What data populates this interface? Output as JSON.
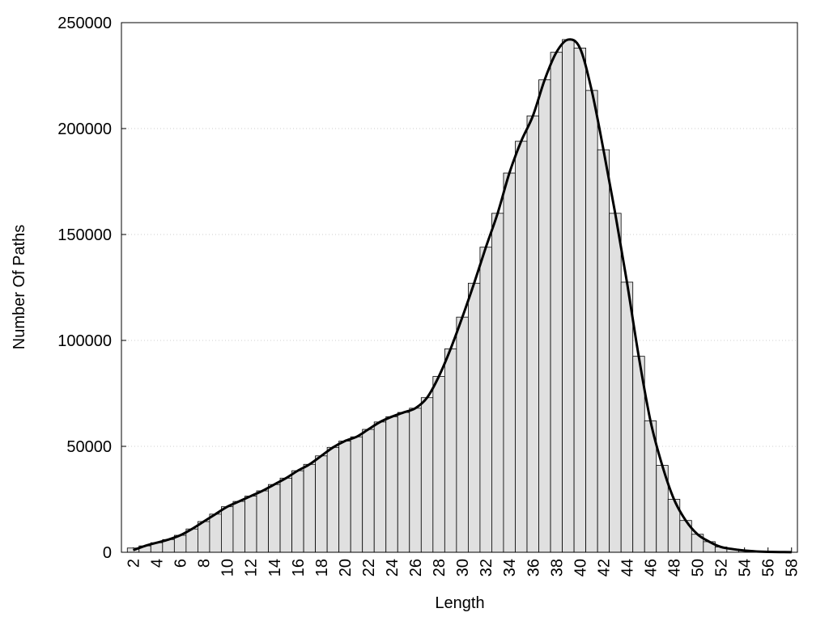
{
  "chart_data": {
    "type": "bar",
    "x_label": "Length",
    "y_label": "Number Of Paths",
    "x": [
      2,
      3,
      4,
      5,
      6,
      7,
      8,
      9,
      10,
      11,
      12,
      13,
      14,
      15,
      16,
      17,
      18,
      19,
      20,
      21,
      22,
      23,
      24,
      25,
      26,
      27,
      28,
      29,
      30,
      31,
      32,
      33,
      34,
      35,
      36,
      37,
      38,
      39,
      40,
      41,
      42,
      43,
      44,
      45,
      46,
      47,
      48,
      49,
      50,
      51,
      52,
      53,
      54,
      55,
      56,
      57,
      58
    ],
    "series": [
      {
        "style": "bar",
        "color": "#e0e0e0",
        "values": [
          2000,
          3000,
          4500,
          6000,
          8000,
          11000,
          14500,
          18000,
          21500,
          24000,
          26500,
          29000,
          32000,
          35000,
          38500,
          41500,
          45500,
          49500,
          52500,
          54500,
          58000,
          61500,
          64000,
          66000,
          68000,
          73000,
          83000,
          96000,
          111000,
          127000,
          144000,
          160000,
          179000,
          194000,
          206000,
          223000,
          236000,
          242000,
          238000,
          218000,
          190000,
          160000,
          127500,
          92500,
          62000,
          41000,
          25000,
          15000,
          8500,
          5000,
          2500,
          1500,
          800,
          400,
          200,
          100,
          50
        ]
      },
      {
        "style": "line",
        "color": "#000000",
        "values": [
          1000,
          3000,
          4500,
          6000,
          8000,
          11000,
          14500,
          18000,
          21500,
          24000,
          26500,
          29000,
          32000,
          35000,
          38500,
          41500,
          45500,
          49500,
          52500,
          54500,
          58000,
          61500,
          64000,
          66000,
          68000,
          73000,
          83000,
          96000,
          111000,
          127000,
          144000,
          160000,
          179000,
          194000,
          206000,
          223000,
          236000,
          242000,
          238000,
          218000,
          190000,
          160000,
          127500,
          92500,
          62000,
          41000,
          25000,
          15000,
          8500,
          5000,
          2500,
          1500,
          800,
          400,
          200,
          100,
          50
        ]
      }
    ],
    "xlim": [
      1,
      58.5
    ],
    "xticks": [
      2,
      4,
      6,
      8,
      10,
      12,
      14,
      16,
      18,
      20,
      22,
      24,
      26,
      28,
      30,
      32,
      34,
      36,
      38,
      40,
      42,
      44,
      46,
      48,
      50,
      52,
      54,
      56,
      58
    ],
    "ylim": [
      0,
      250000
    ],
    "yticks": [
      0,
      50000,
      100000,
      150000,
      200000,
      250000
    ],
    "grid": true
  }
}
